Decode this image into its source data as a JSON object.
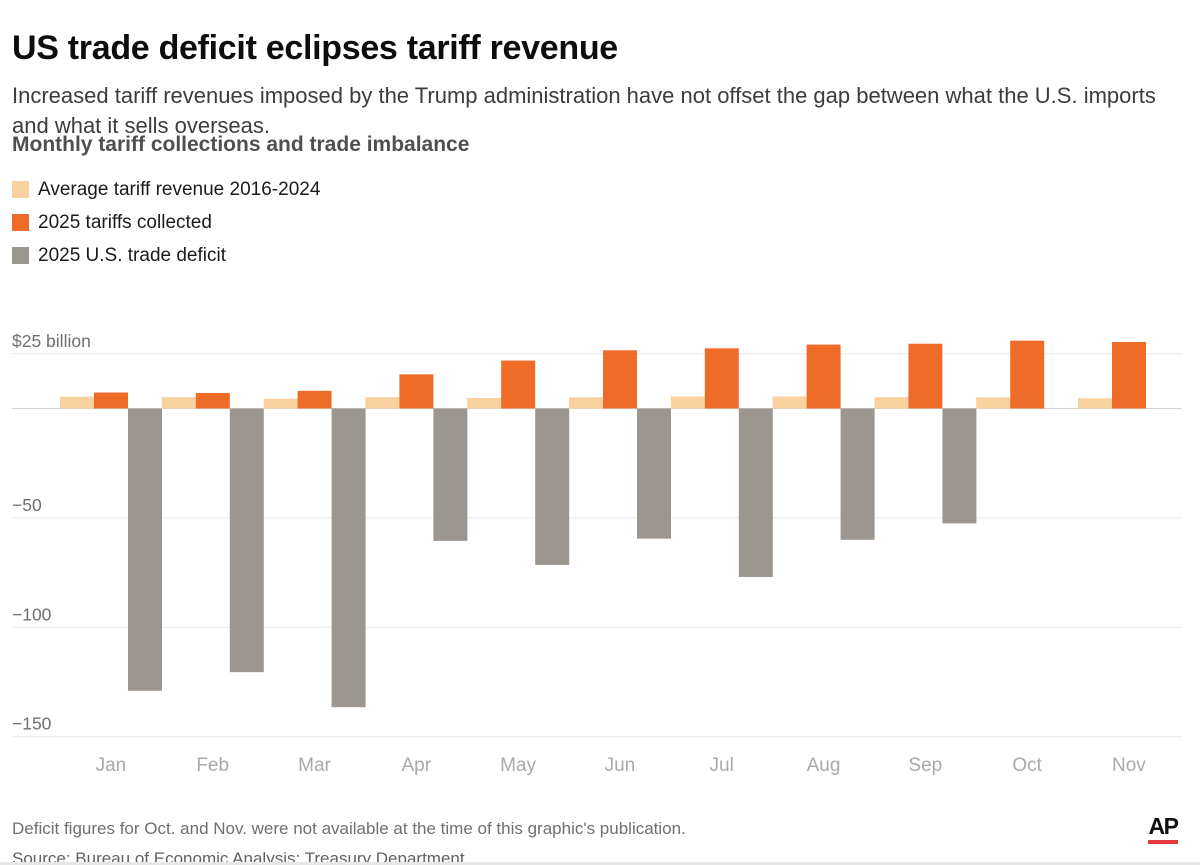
{
  "header": {
    "title": "US trade deficit eclipses tariff revenue",
    "subtitle": "Increased tariff revenues imposed by the Trump administration have not offset the gap between what the U.S. imports and what it sells overseas.",
    "section_heading": "Monthly tariff collections and trade imbalance"
  },
  "legend": {
    "items": [
      {
        "label": "Average tariff revenue 2016-2024",
        "color": "#F9D2A0"
      },
      {
        "label": "2025 tariffs collected",
        "color": "#EE6B28"
      },
      {
        "label": "2025 U.S. trade deficit",
        "color": "#9C9691"
      }
    ]
  },
  "chart_data": {
    "type": "bar",
    "unit": "billions of US dollars",
    "categories": [
      "Jan",
      "Feb",
      "Mar",
      "Apr",
      "May",
      "Jun",
      "Jul",
      "Aug",
      "Sep",
      "Oct",
      "Nov"
    ],
    "series": [
      {
        "key": "average_tariff_revenue_2016_2024",
        "name": "Average tariff revenue 2016-2024",
        "color": "#F9D2A0",
        "values": [
          5.4,
          5.2,
          4.5,
          5.2,
          4.8,
          5.1,
          5.5,
          5.5,
          5.2,
          5.1,
          4.7
        ]
      },
      {
        "key": "tariffs_collected_2025",
        "name": "2025 tariffs collected",
        "color": "#EE6B28",
        "values": [
          7.3,
          7.1,
          8.1,
          15.6,
          21.9,
          26.6,
          27.5,
          29.2,
          29.6,
          31.0,
          30.4
        ]
      },
      {
        "key": "trade_deficit_2025",
        "name": "2025 U.S. trade deficit",
        "color": "#9C9691",
        "values": [
          -129,
          -120.5,
          -136.5,
          -60.5,
          -71.5,
          -59.5,
          -77,
          -60,
          -52.5,
          null,
          null
        ]
      }
    ],
    "y_axis": {
      "ticks": [
        25,
        0,
        -50,
        -100,
        -150
      ],
      "tick_labels": [
        "$25 billion",
        "",
        "−50",
        "−100",
        "−150"
      ],
      "ylim": [
        -160,
        30
      ]
    },
    "grid": true,
    "legend_position": "top-left",
    "note": "No trade-deficit bars for Oct and Nov"
  },
  "footer": {
    "note": "Deficit figures for Oct. and Nov. were not available at the time of this graphic's publication.",
    "source": "Source: Bureau of Economic Analysis; Treasury Department",
    "logo_text": "AP",
    "logo_underline_color": "#e23b3b"
  }
}
